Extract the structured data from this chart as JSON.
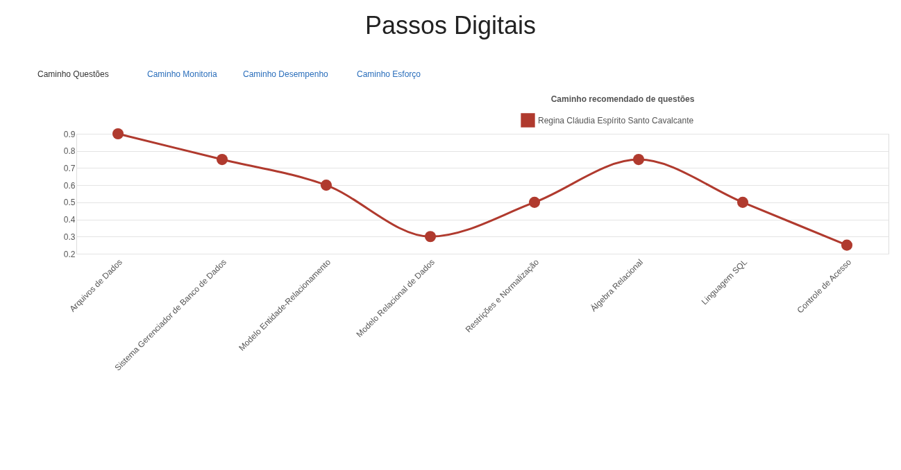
{
  "chart_data": {
    "type": "line",
    "title": "Passos Digitais",
    "subtitle": "Caminho recomendado de questões",
    "annotations": [
      "Caminho Questões",
      "Caminho Monitoria",
      "Caminho Desempenho",
      "Caminho Esforço"
    ],
    "categories": [
      "Arquivos de Dados",
      "Sistema Gerenciador de Banco de Dados",
      "Modelo Entidade-Relacionamento",
      "Modelo Relacional de Dados",
      "Restrições e Normalização",
      "Álgebra Relacional",
      "Linguagem SQL",
      "Controle de Acesso"
    ],
    "series": [
      {
        "name": "Regina Cláudia Espírito Santo Cavalcante",
        "color": "#b03a2e",
        "values": [
          0.9,
          0.75,
          0.6,
          0.3,
          0.5,
          0.75,
          0.5,
          0.25
        ]
      }
    ],
    "ylim": [
      0.2,
      0.9
    ],
    "yticks": [
      0.2,
      0.3,
      0.4,
      0.5,
      0.6,
      0.7,
      0.8,
      0.9
    ],
    "grid": "y",
    "legend": "top",
    "marker": "circle",
    "line_style": "solid"
  }
}
